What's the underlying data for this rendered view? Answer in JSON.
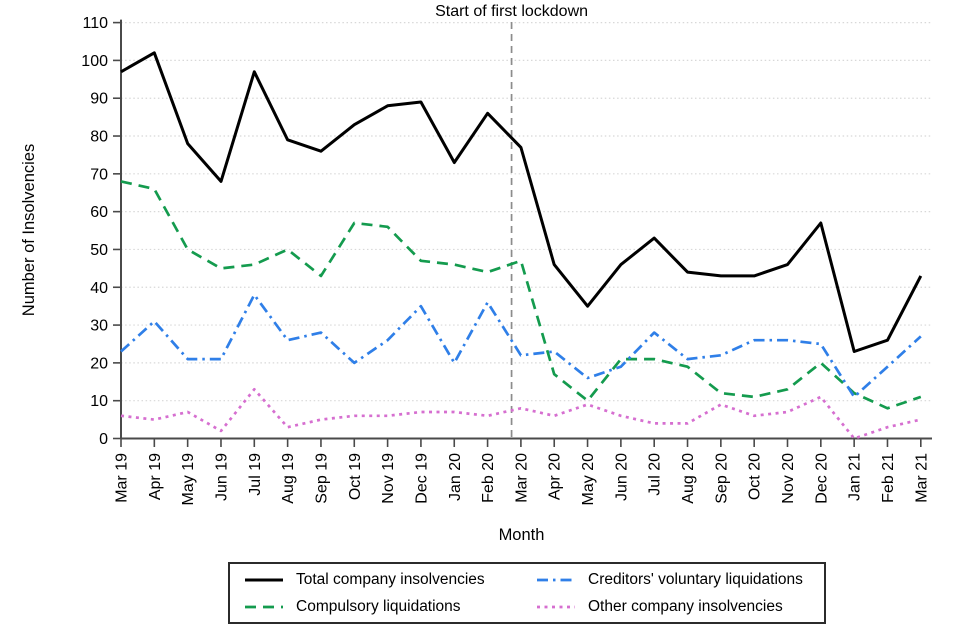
{
  "chart_data": {
    "type": "line",
    "title": "",
    "xlabel": "Month",
    "ylabel": "Number of Insolvencies",
    "ylim": [
      0,
      110
    ],
    "ytick_step": 10,
    "grid": "horizontal-dotted",
    "legend_position": "bottom-boxed",
    "categories": [
      "Mar 19",
      "Apr 19",
      "May 19",
      "Jun 19",
      "Jul 19",
      "Aug 19",
      "Sep 19",
      "Oct 19",
      "Nov 19",
      "Dec 19",
      "Jan 20",
      "Feb 20",
      "Mar 20",
      "Apr 20",
      "May 20",
      "Jun 20",
      "Jul 20",
      "Aug 20",
      "Sep 20",
      "Oct 20",
      "Nov 20",
      "Dec 20",
      "Jan 21",
      "Feb 21",
      "Mar 21"
    ],
    "series": [
      {
        "name": "Total company insolvencies",
        "color": "#000000",
        "style": "solid",
        "values": [
          97,
          102,
          78,
          68,
          97,
          79,
          76,
          83,
          88,
          89,
          73,
          86,
          77,
          46,
          35,
          46,
          53,
          44,
          43,
          43,
          46,
          57,
          23,
          26,
          43
        ]
      },
      {
        "name": "Compulsory liquidations",
        "color": "#149b4e",
        "style": "dashed",
        "values": [
          68,
          66,
          50,
          45,
          46,
          50,
          43,
          57,
          56,
          47,
          46,
          44,
          47,
          17,
          10,
          21,
          21,
          19,
          12,
          11,
          13,
          20,
          12,
          8,
          11
        ]
      },
      {
        "name": "Creditors' voluntary liquidations",
        "color": "#2f7fe8",
        "style": "dashdot",
        "values": [
          23,
          31,
          21,
          21,
          38,
          26,
          28,
          20,
          26,
          35,
          20,
          36,
          22,
          23,
          16,
          19,
          28,
          21,
          22,
          26,
          26,
          25,
          11,
          19,
          27
        ]
      },
      {
        "name": "Other company insolvencies",
        "color": "#d66fd0",
        "style": "dotted",
        "values": [
          6,
          5,
          7,
          2,
          13,
          3,
          5,
          6,
          6,
          7,
          7,
          6,
          8,
          6,
          9,
          6,
          4,
          4,
          9,
          6,
          7,
          11,
          0,
          3,
          5
        ]
      }
    ],
    "annotation": {
      "label": "Start of first lockdown",
      "x_index": 11.72,
      "line_color": "#8c8c8c",
      "line_style": "dashed"
    },
    "legend_order": [
      0,
      2,
      1,
      3
    ],
    "axis_color": "#4a4a4a",
    "grid_color": "#d8d8d8",
    "text_color": "#000000"
  }
}
